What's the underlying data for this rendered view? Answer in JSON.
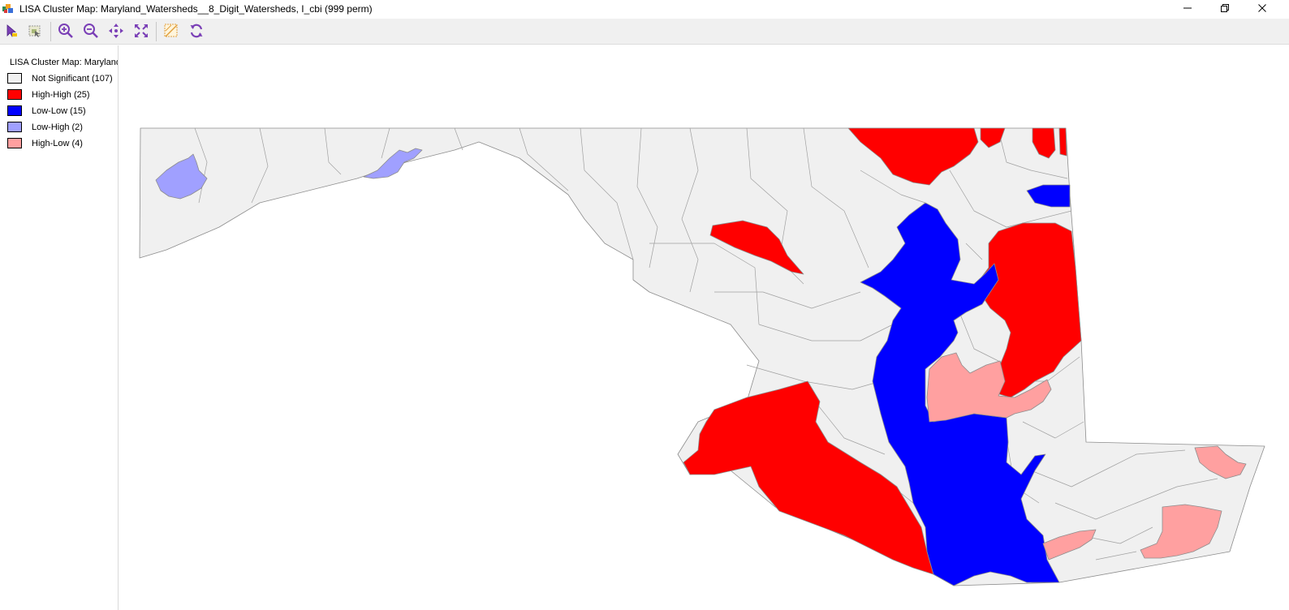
{
  "window": {
    "title": "LISA Cluster Map: Maryland_Watersheds__8_Digit_Watersheds, I_cbi (999 perm)",
    "controls": [
      "minimize-icon",
      "restore-icon",
      "close-icon"
    ]
  },
  "toolbar": {
    "tools": [
      {
        "name": "select-tool",
        "icon": "arrow-cursor-icon"
      },
      {
        "name": "select-by-rect-tool",
        "icon": "select-region-icon"
      },
      {
        "name": "zoom-in-tool",
        "icon": "zoom-in-icon"
      },
      {
        "name": "zoom-out-tool",
        "icon": "zoom-out-icon"
      },
      {
        "name": "pan-tool",
        "icon": "pan-icon"
      },
      {
        "name": "full-extent-tool",
        "icon": "fit-extent-icon"
      },
      {
        "name": "brush-tool",
        "icon": "brush-icon"
      },
      {
        "name": "refresh-tool",
        "icon": "refresh-icon"
      }
    ]
  },
  "legend": {
    "title": "LISA Cluster Map: Maryland",
    "items": [
      {
        "label": "Not Significant (107)",
        "color": "#f0f0f0"
      },
      {
        "label": "High-High (25)",
        "color": "#ff0000"
      },
      {
        "label": "Low-Low (15)",
        "color": "#0000ff"
      },
      {
        "label": "Low-High (2)",
        "color": "#a0a0ff"
      },
      {
        "label": "High-Low (4)",
        "color": "#ffa0a0"
      }
    ]
  },
  "colors": {
    "not_significant": "#f0f0f0",
    "high_high": "#ff0000",
    "low_low": "#0000ff",
    "low_high": "#a0a0ff",
    "high_low": "#ffa0a0",
    "boundary": "#8c8c8c",
    "toolbar_icon": "#7a3fb6"
  }
}
